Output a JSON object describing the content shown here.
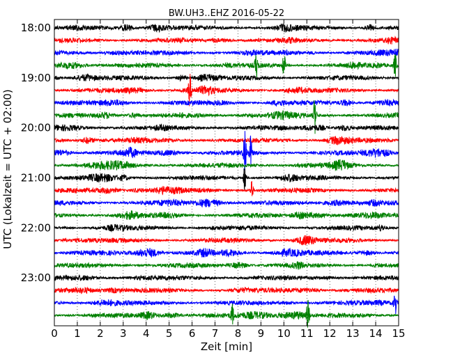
{
  "chart_data": {
    "type": "line",
    "title": "BW.UH3..EHZ 2016-05-22",
    "xlabel": "Zeit  [min]",
    "ylabel": "UTC (Lokalzeit = UTC + 02:00)",
    "xlim": [
      0,
      15
    ],
    "x_ticks": [
      "0",
      "1",
      "2",
      "3",
      "4",
      "5",
      "6",
      "7",
      "8",
      "9",
      "10",
      "11",
      "12",
      "13",
      "14",
      "15"
    ],
    "y_ticks": [
      "18:00",
      "19:00",
      "20:00",
      "21:00",
      "22:00",
      "23:00"
    ],
    "start_time": "18:00",
    "trace_minutes": 15,
    "trace_count": 24,
    "grid": "vertical dotted lines at each minute",
    "color_cycle": [
      "#000000",
      "#ff0000",
      "#0000ff",
      "#008000"
    ],
    "events": [
      {
        "trace_start": "18:45",
        "minute": 8.8,
        "amplitude": 2.2
      },
      {
        "trace_start": "18:45",
        "minute": 10.0,
        "amplitude": 2.0
      },
      {
        "trace_start": "18:45",
        "minute": 14.85,
        "amplitude": 2.0
      },
      {
        "trace_start": "19:15",
        "minute": 5.9,
        "amplitude": 2.4
      },
      {
        "trace_start": "19:45",
        "minute": 11.35,
        "amplitude": 2.8
      },
      {
        "trace_start": "20:30",
        "minute": 8.3,
        "amplitude": 4.5
      },
      {
        "trace_start": "20:30",
        "minute": 8.55,
        "amplitude": 2.5
      },
      {
        "trace_start": "21:00",
        "minute": 8.3,
        "amplitude": 2.2
      },
      {
        "trace_start": "21:15",
        "minute": 8.6,
        "amplitude": 1.8
      },
      {
        "trace_start": "23:30",
        "minute": 14.85,
        "amplitude": 2.0
      },
      {
        "trace_start": "23:45",
        "minute": 11.05,
        "amplitude": 2.6
      },
      {
        "trace_start": "23:45",
        "minute": 7.75,
        "amplitude": 1.5
      }
    ]
  }
}
